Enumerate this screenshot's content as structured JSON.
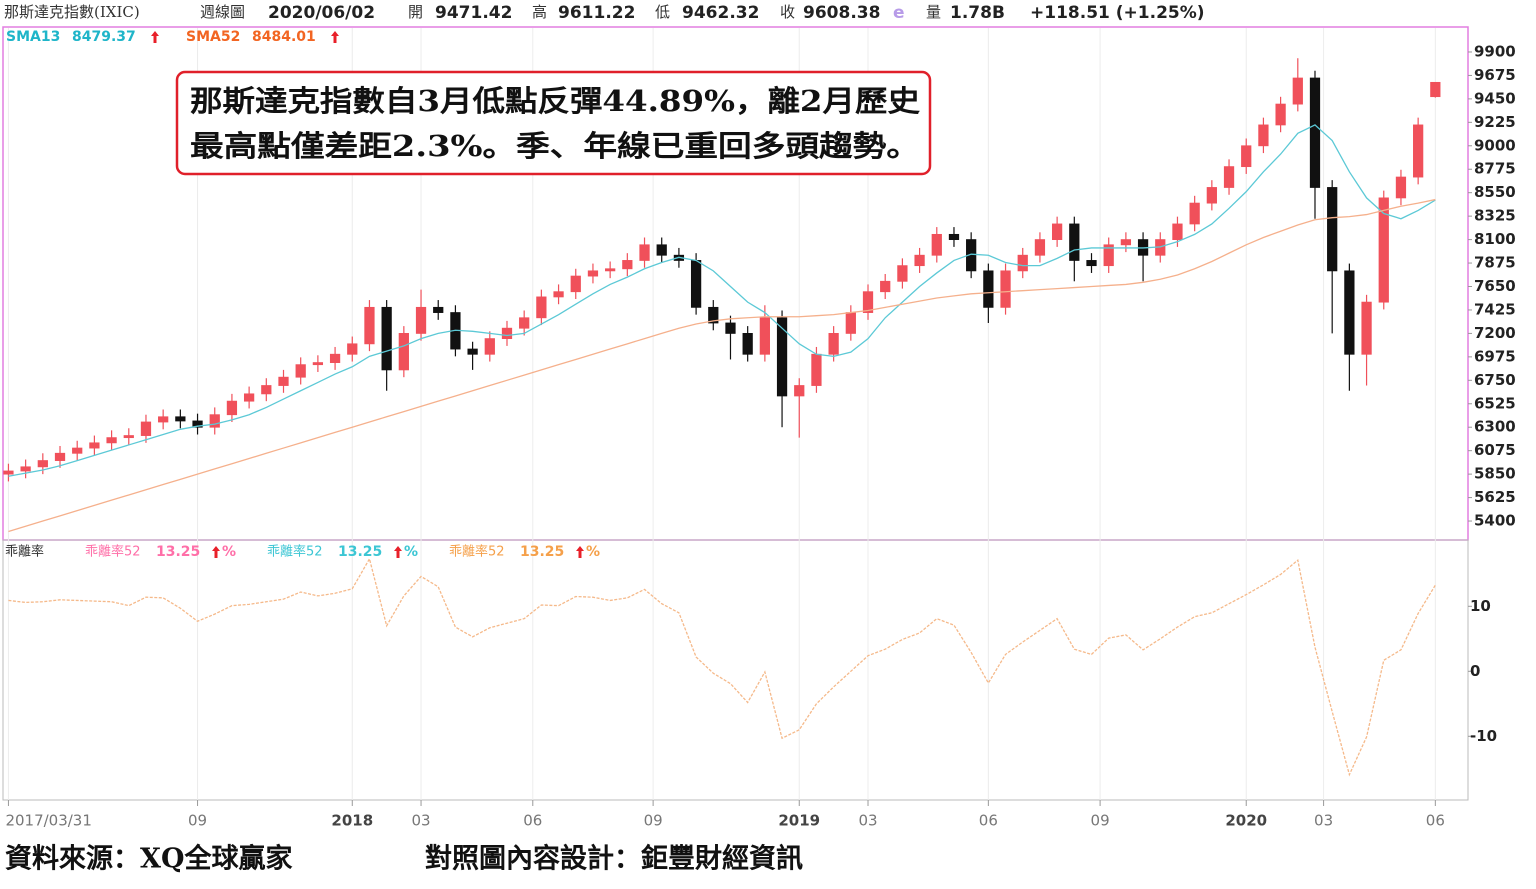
{
  "chart_data": [
    {
      "type": "candlestick",
      "title": "那斯達克指數(IXIC)",
      "period": "週線圖",
      "date": "2020/06/02",
      "quote_labels": {
        "open": "開",
        "high": "高",
        "low": "低",
        "close": "收",
        "estimate": "e",
        "volume": "量"
      },
      "volume": "1.78B",
      "change": "+118.51 (+1.25%)",
      "up_color": "#f0505a",
      "down_color": "#111111",
      "open": [
        5850,
        5880,
        5920,
        5980,
        6050,
        6100,
        6150,
        6200,
        6220,
        6350,
        6400,
        6360,
        6300,
        6420,
        6550,
        6620,
        6700,
        6780,
        6900,
        6920,
        7000,
        7100,
        7450,
        6850,
        7200,
        7450,
        7400,
        7050,
        7000,
        7150,
        7250,
        7350,
        7550,
        7600,
        7750,
        7800,
        7820,
        7900,
        8050,
        7950,
        7900,
        7450,
        7300,
        7200,
        7000,
        7350,
        6600,
        6700,
        7000,
        7200,
        7400,
        7600,
        7700,
        7850,
        7950,
        8150,
        8100,
        7800,
        7450,
        7800,
        7950,
        8100,
        8250,
        7900,
        7850,
        8050,
        8100,
        7950,
        8100,
        8250,
        8450,
        8600,
        8800,
        9000,
        9200,
        9400,
        9650,
        8600,
        7800,
        7000,
        7500,
        8500,
        8700,
        9471.42
      ],
      "high": [
        5950,
        5990,
        6050,
        6120,
        6170,
        6220,
        6270,
        6290,
        6420,
        6470,
        6470,
        6430,
        6490,
        6620,
        6690,
        6770,
        6850,
        6970,
        6990,
        7070,
        7170,
        7520,
        7520,
        7270,
        7620,
        7520,
        7470,
        7120,
        7220,
        7320,
        7420,
        7620,
        7670,
        7820,
        7870,
        7890,
        7970,
        8120,
        8120,
        8020,
        7970,
        7520,
        7370,
        7270,
        7470,
        7420,
        6770,
        7070,
        7270,
        7470,
        7670,
        7770,
        7920,
        8020,
        8220,
        8220,
        8170,
        7870,
        7870,
        8020,
        8170,
        8320,
        8320,
        7970,
        8120,
        8170,
        8170,
        8170,
        8320,
        8520,
        8670,
        8870,
        9070,
        9270,
        9470,
        9840,
        9720,
        8670,
        7870,
        7570,
        8570,
        8770,
        9270,
        9611.22
      ],
      "low": [
        5780,
        5810,
        5850,
        5910,
        5980,
        6030,
        6080,
        6130,
        6150,
        6280,
        6290,
        6230,
        6230,
        6350,
        6480,
        6550,
        6630,
        6710,
        6830,
        6850,
        6930,
        7030,
        6650,
        6780,
        7130,
        7330,
        6980,
        6850,
        6930,
        7080,
        7180,
        7280,
        7480,
        7530,
        7680,
        7730,
        7750,
        7830,
        7880,
        7830,
        7380,
        7230,
        6950,
        6930,
        6930,
        6300,
        6200,
        6630,
        6930,
        7130,
        7330,
        7530,
        7630,
        7780,
        7880,
        8030,
        7730,
        7300,
        7380,
        7730,
        7880,
        8030,
        7700,
        7780,
        7780,
        7980,
        7700,
        7880,
        8030,
        8180,
        8380,
        8530,
        8730,
        8930,
        9130,
        9330,
        8300,
        7200,
        6650,
        6700,
        7430,
        8430,
        8630,
        9462.32
      ],
      "close": [
        5880,
        5920,
        5980,
        6050,
        6100,
        6150,
        6200,
        6220,
        6350,
        6400,
        6360,
        6300,
        6420,
        6550,
        6620,
        6700,
        6780,
        6900,
        6920,
        7000,
        7100,
        7450,
        6850,
        7200,
        7450,
        7400,
        7050,
        7000,
        7150,
        7250,
        7350,
        7550,
        7600,
        7750,
        7800,
        7820,
        7900,
        8050,
        7950,
        7900,
        7450,
        7300,
        7200,
        7000,
        7350,
        6600,
        6700,
        7000,
        7200,
        7400,
        7600,
        7700,
        7850,
        7950,
        8150,
        8100,
        7800,
        7450,
        7800,
        7950,
        8100,
        8250,
        7900,
        7850,
        8050,
        8100,
        7950,
        8100,
        8250,
        8450,
        8600,
        8800,
        9000,
        9200,
        9400,
        9650,
        8600,
        7800,
        7000,
        7500,
        8500,
        8700,
        9200,
        9608.38
      ],
      "overlays": [
        {
          "name": "SMA13",
          "color": "#5cc9d6",
          "label_color": "#1fb5c9",
          "values": [
            5830,
            5860,
            5890,
            5930,
            5980,
            6030,
            6080,
            6130,
            6180,
            6230,
            6280,
            6310,
            6330,
            6370,
            6420,
            6490,
            6570,
            6650,
            6730,
            6810,
            6880,
            6980,
            7030,
            7080,
            7150,
            7200,
            7230,
            7220,
            7200,
            7180,
            7200,
            7290,
            7380,
            7480,
            7580,
            7670,
            7740,
            7820,
            7880,
            7930,
            7900,
            7800,
            7650,
            7500,
            7400,
            7250,
            7100,
            7000,
            6980,
            7020,
            7150,
            7350,
            7500,
            7650,
            7780,
            7900,
            7960,
            7950,
            7880,
            7850,
            7850,
            7920,
            8000,
            8020,
            8020,
            8020,
            8020,
            8030,
            8080,
            8150,
            8250,
            8400,
            8560,
            8750,
            8920,
            9120,
            9200,
            9050,
            8750,
            8500,
            8350,
            8300,
            8380,
            8479.37
          ]
        },
        {
          "name": "SMA52",
          "color": "#f5b08c",
          "label_color": "#f26522",
          "values": [
            5300,
            5350,
            5400,
            5450,
            5500,
            5550,
            5600,
            5650,
            5700,
            5750,
            5800,
            5850,
            5900,
            5950,
            6000,
            6050,
            6100,
            6150,
            6200,
            6250,
            6300,
            6350,
            6400,
            6450,
            6500,
            6550,
            6600,
            6650,
            6700,
            6750,
            6800,
            6850,
            6900,
            6950,
            7000,
            7050,
            7100,
            7150,
            7200,
            7250,
            7290,
            7320,
            7340,
            7350,
            7360,
            7360,
            7360,
            7370,
            7380,
            7400,
            7420,
            7450,
            7480,
            7510,
            7540,
            7560,
            7580,
            7590,
            7600,
            7610,
            7620,
            7630,
            7640,
            7650,
            7660,
            7670,
            7690,
            7720,
            7760,
            7820,
            7890,
            7970,
            8050,
            8120,
            8180,
            8240,
            8290,
            8310,
            8320,
            8340,
            8380,
            8420,
            8450,
            8484.01
          ]
        }
      ],
      "annotation": [
        "那斯達克指數自3月低點反彈44.89%，離2月歷史",
        "最高點僅差距2.3%。季、年線已重回多頭趨勢。"
      ],
      "xlim": [
        -0.2,
        84.9
      ],
      "ylim": [
        5218,
        10130
      ],
      "yticks": [
        5400,
        5625,
        5850,
        6075,
        6300,
        6525,
        6750,
        6975,
        7200,
        7425,
        7650,
        7875,
        8100,
        8325,
        8550,
        8775,
        9000,
        9225,
        9450,
        9675,
        9900
      ]
    },
    {
      "type": "line",
      "title": "乖離率",
      "unit": "%",
      "legend": [
        {
          "name": "乖離率52",
          "color": "#ff6fa8"
        },
        {
          "name": "乖離率52",
          "color": "#3cc6d4"
        },
        {
          "name": "乖離率52",
          "color": "#f5a04a"
        }
      ],
      "series": [
        {
          "color": "#f5b98a",
          "values": [
            10.9,
            10.6,
            10.7,
            11.0,
            10.9,
            10.8,
            10.7,
            10.1,
            11.4,
            11.3,
            9.7,
            7.7,
            8.8,
            10.1,
            10.3,
            10.7,
            11.1,
            12.2,
            11.6,
            12.0,
            12.7,
            17.3,
            7.0,
            11.6,
            14.6,
            13.0,
            6.8,
            5.3,
            6.7,
            7.4,
            8.1,
            10.2,
            10.1,
            11.5,
            11.4,
            10.9,
            11.3,
            12.6,
            10.4,
            9.0,
            2.2,
            -0.3,
            -1.9,
            -4.8,
            -0.1,
            -10.3,
            -9.0,
            -5.0,
            -2.4,
            0,
            2.4,
            3.4,
            4.9,
            5.9,
            8.1,
            7.1,
            2.9,
            -1.8,
            2.6,
            4.5,
            6.3,
            8.1,
            3.4,
            2.6,
            5.1,
            5.6,
            3.3,
            5.0,
            6.8,
            8.4,
            9.0,
            10.4,
            11.8,
            13.3,
            14.9,
            17.1,
            3.7,
            -6.2,
            -15.9,
            -10.1,
            1.7,
            3.3,
            8.9,
            13.25
          ]
        }
      ],
      "xlim": [
        -0.2,
        84.9
      ],
      "ylim": [
        -19.8,
        20.2
      ],
      "yticks": [
        10,
        0,
        -10
      ],
      "xticks": [
        {
          "value": 0,
          "label": "2017/03/31"
        },
        {
          "value": 11,
          "label": "09"
        },
        {
          "value": 20,
          "label": "2018"
        },
        {
          "value": 24,
          "label": "03"
        },
        {
          "value": 30.5,
          "label": "06"
        },
        {
          "value": 37.5,
          "label": "09"
        },
        {
          "value": 46,
          "label": "2019"
        },
        {
          "value": 50,
          "label": "03"
        },
        {
          "value": 57,
          "label": "06"
        },
        {
          "value": 63.5,
          "label": "09"
        },
        {
          "value": 72,
          "label": "2020"
        },
        {
          "value": 76.5,
          "label": "03"
        },
        {
          "value": 83,
          "label": "06"
        }
      ],
      "grid": true
    }
  ],
  "footer": {
    "source": "資料來源：XQ全球贏家",
    "design": "對照圖內容設計：鉅豐財經資訊"
  }
}
